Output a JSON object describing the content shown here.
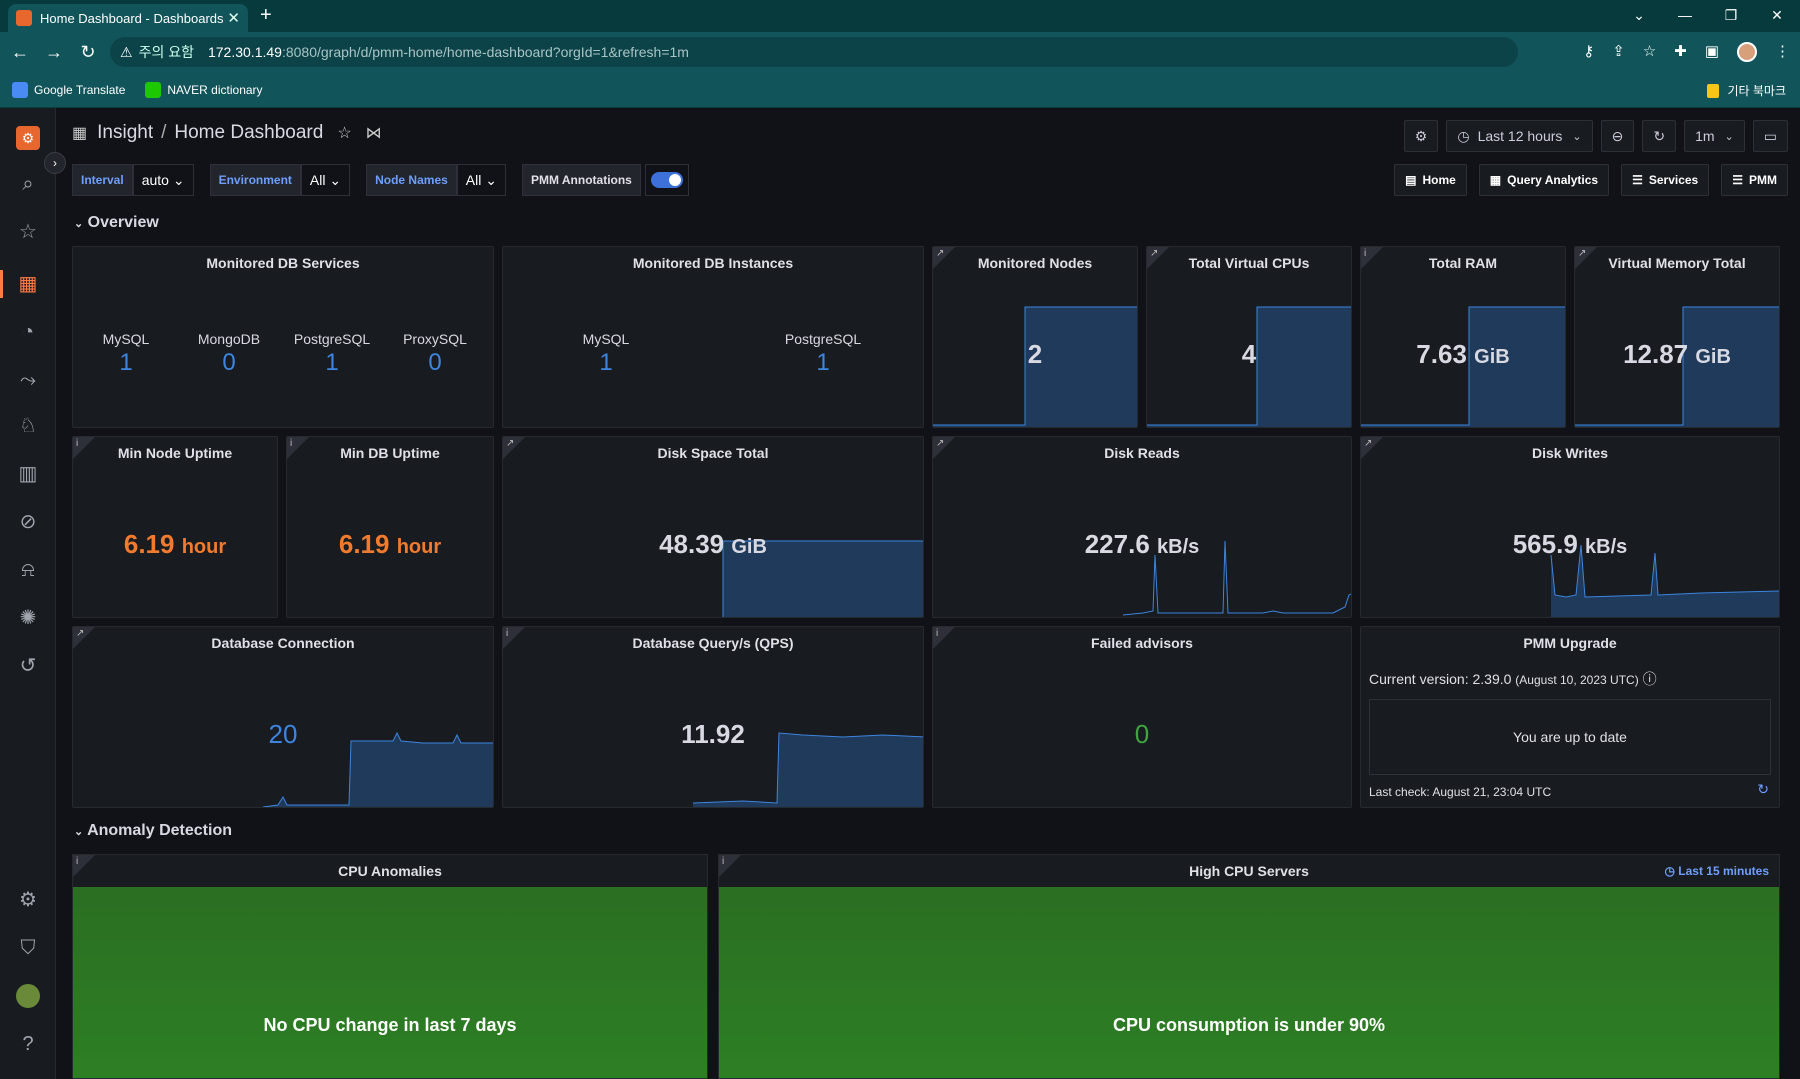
{
  "browser": {
    "tab_title": "Home Dashboard - Dashboards",
    "security_label": "주의 요함",
    "url_host": "172.30.1.49",
    "url_rest": ":8080/graph/d/pmm-home/home-dashboard?orgId=1&refresh=1m",
    "bookmarks": [
      {
        "label": "Google Translate"
      },
      {
        "label": "NAVER dictionary"
      }
    ],
    "other_bookmarks": "기타 북마크"
  },
  "header": {
    "folder": "Insight",
    "title": "Home Dashboard",
    "time_range": "Last 12 hours",
    "refresh": "1m"
  },
  "variables": {
    "interval_label": "Interval",
    "interval_value": "auto",
    "env_label": "Environment",
    "env_value": "All",
    "nodes_label": "Node Names",
    "nodes_value": "All",
    "annotations_label": "PMM Annotations"
  },
  "links": [
    "Home",
    "Query Analytics",
    "Services",
    "PMM"
  ],
  "rows": {
    "overview": "Overview",
    "anomaly": "Anomaly Detection"
  },
  "panels": {
    "db_services": {
      "title": "Monitored DB Services",
      "items": [
        {
          "name": "MySQL",
          "value": "1"
        },
        {
          "name": "MongoDB",
          "value": "0"
        },
        {
          "name": "PostgreSQL",
          "value": "1"
        },
        {
          "name": "ProxySQL",
          "value": "0"
        }
      ]
    },
    "db_instances": {
      "title": "Monitored DB Instances",
      "items": [
        {
          "name": "MySQL",
          "value": "1"
        },
        {
          "name": "PostgreSQL",
          "value": "1"
        }
      ]
    },
    "nodes": {
      "title": "Monitored Nodes",
      "value": "2"
    },
    "vcpus": {
      "title": "Total Virtual CPUs",
      "value": "4"
    },
    "ram": {
      "title": "Total RAM",
      "value": "7.63",
      "unit": "GiB"
    },
    "vmem": {
      "title": "Virtual Memory Total",
      "value": "12.87",
      "unit": "GiB"
    },
    "node_uptime": {
      "title": "Min Node Uptime",
      "value": "6.19",
      "unit": "hour"
    },
    "db_uptime": {
      "title": "Min DB Uptime",
      "value": "6.19",
      "unit": "hour"
    },
    "disk_space": {
      "title": "Disk Space Total",
      "value": "48.39",
      "unit": "GiB"
    },
    "disk_reads": {
      "title": "Disk Reads",
      "value": "227.6",
      "unit": "kB/s"
    },
    "disk_writes": {
      "title": "Disk Writes",
      "value": "565.9",
      "unit": "kB/s"
    },
    "db_conn": {
      "title": "Database Connection",
      "value": "20"
    },
    "qps": {
      "title": "Database Query/s (QPS)",
      "value": "11.92"
    },
    "advisors": {
      "title": "Failed advisors",
      "value": "0"
    },
    "upgrade": {
      "title": "PMM Upgrade",
      "current": "Current version: 2.39.0",
      "date": "(August 10, 2023 UTC)",
      "status": "You are up to date",
      "last_check": "Last check: August 21, 23:04 UTC"
    },
    "cpu_anom": {
      "title": "CPU Anomalies",
      "text": "No CPU change in last 7 days"
    },
    "high_cpu": {
      "title": "High CPU Servers",
      "range": "Last 15 minutes",
      "text": "CPU consumption is under 90%"
    }
  },
  "colors": {
    "accent": "#3d71d9",
    "orange": "#f07b2f",
    "green_panel": "#2d7f24"
  }
}
